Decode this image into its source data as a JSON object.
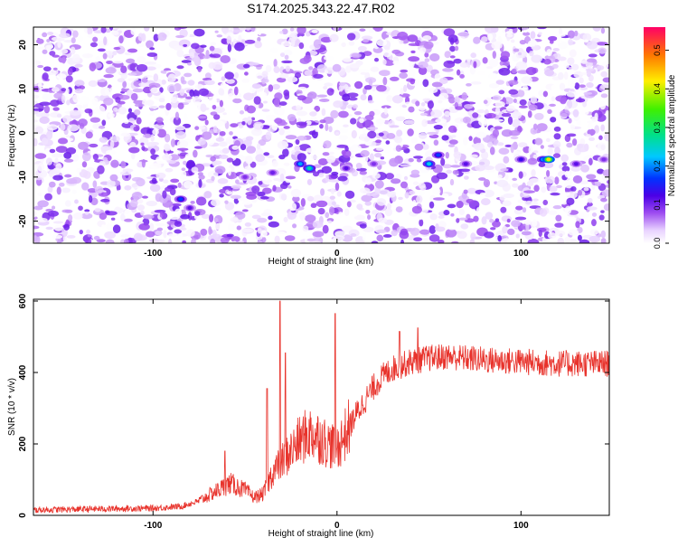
{
  "title": "S174.2025.343.22.47.R02",
  "chart_data": [
    {
      "type": "heatmap",
      "xlabel": "Height of straight line (km)",
      "ylabel": "Frequency (Hz)",
      "xlim": [
        -165,
        148
      ],
      "ylim": [
        -25,
        24
      ],
      "xticks": [
        -100,
        0,
        100
      ],
      "yticks": [
        -20,
        -10,
        0,
        10,
        20
      ],
      "colorbar": {
        "label": "Normalized spectral amplitude",
        "range": [
          0,
          0.56
        ],
        "ticks": [
          0.0,
          0.1,
          0.2,
          0.3,
          0.4,
          0.5
        ]
      },
      "ridge": {
        "description": "band of elevated amplitude near -6 to -8 Hz",
        "points": [
          {
            "x": -85,
            "y": -15,
            "v": 0.18
          },
          {
            "x": -80,
            "y": -17,
            "v": 0.12
          },
          {
            "x": -50,
            "y": -10,
            "v": 0.1
          },
          {
            "x": -35,
            "y": -9,
            "v": 0.11
          },
          {
            "x": -20,
            "y": -7,
            "v": 0.22
          },
          {
            "x": -15,
            "y": -8,
            "v": 0.28
          },
          {
            "x": 5,
            "y": -8,
            "v": 0.12
          },
          {
            "x": 20,
            "y": -7,
            "v": 0.1
          },
          {
            "x": 50,
            "y": -7,
            "v": 0.25
          },
          {
            "x": 55,
            "y": -5,
            "v": 0.18
          },
          {
            "x": 70,
            "y": -7,
            "v": 0.12
          },
          {
            "x": 100,
            "y": -6,
            "v": 0.14
          },
          {
            "x": 112,
            "y": -6,
            "v": 0.22
          },
          {
            "x": 115,
            "y": -6,
            "v": 0.45
          },
          {
            "x": 130,
            "y": -7,
            "v": 0.12
          },
          {
            "x": 145,
            "y": -6,
            "v": 0.1
          }
        ]
      }
    },
    {
      "type": "line",
      "xlabel": "Height of straight line (km)",
      "ylabel": "SNR (10 * v/v)",
      "xlim": [
        -165,
        148
      ],
      "ylim": [
        0,
        605
      ],
      "xticks": [
        -100,
        0,
        100
      ],
      "yticks": [
        0,
        200,
        400,
        600
      ],
      "color": "#e8332c",
      "trend": [
        {
          "x": -165,
          "y": 15
        },
        {
          "x": -130,
          "y": 18
        },
        {
          "x": -100,
          "y": 20
        },
        {
          "x": -85,
          "y": 25
        },
        {
          "x": -75,
          "y": 40
        },
        {
          "x": -65,
          "y": 70
        },
        {
          "x": -58,
          "y": 90
        },
        {
          "x": -50,
          "y": 70
        },
        {
          "x": -45,
          "y": 50
        },
        {
          "x": -40,
          "y": 60
        },
        {
          "x": -35,
          "y": 120
        },
        {
          "x": -30,
          "y": 150
        },
        {
          "x": -25,
          "y": 180
        },
        {
          "x": -20,
          "y": 210
        },
        {
          "x": -15,
          "y": 230
        },
        {
          "x": -10,
          "y": 220
        },
        {
          "x": -5,
          "y": 200
        },
        {
          "x": 0,
          "y": 190
        },
        {
          "x": 5,
          "y": 230
        },
        {
          "x": 10,
          "y": 280
        },
        {
          "x": 15,
          "y": 320
        },
        {
          "x": 20,
          "y": 360
        },
        {
          "x": 25,
          "y": 390
        },
        {
          "x": 30,
          "y": 410
        },
        {
          "x": 40,
          "y": 430
        },
        {
          "x": 50,
          "y": 440
        },
        {
          "x": 60,
          "y": 445
        },
        {
          "x": 80,
          "y": 435
        },
        {
          "x": 100,
          "y": 430
        },
        {
          "x": 120,
          "y": 425
        },
        {
          "x": 148,
          "y": 425
        }
      ],
      "spikes": [
        {
          "x": -61,
          "y": 180
        },
        {
          "x": -38,
          "y": 355
        },
        {
          "x": -31,
          "y": 600
        },
        {
          "x": -28,
          "y": 455
        },
        {
          "x": -1,
          "y": 565
        },
        {
          "x": 34,
          "y": 515
        },
        {
          "x": 44,
          "y": 525
        }
      ]
    }
  ]
}
